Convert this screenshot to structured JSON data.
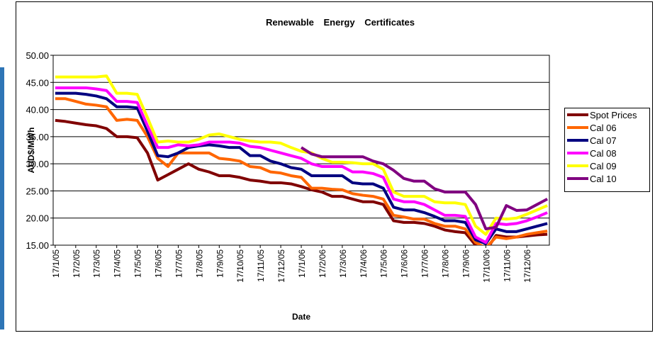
{
  "chart_data": {
    "type": "line",
    "title": "Renewable Energy Certificates",
    "x_label": "Date",
    "y_label": "AUD$/MWh",
    "x": [
      0,
      0.5,
      1,
      1.5,
      2,
      2.5,
      3,
      3.5,
      4,
      4.5,
      5,
      5.5,
      6,
      6.5,
      7,
      7.5,
      8,
      8.5,
      9,
      9.5,
      10,
      10.5,
      11,
      11.5,
      12,
      12.5,
      13,
      13.5,
      14,
      14.5,
      15,
      15.5,
      16,
      16.5,
      17,
      17.5,
      18,
      18.5,
      19,
      19.5,
      20,
      20.5,
      21,
      21.5,
      22,
      22.5,
      23,
      23.5,
      24
    ],
    "xlim": [
      -0.1,
      24.1
    ],
    "xticks": [
      {
        "value": 0,
        "label": "17/1/05"
      },
      {
        "value": 1,
        "label": "17/2/05"
      },
      {
        "value": 2,
        "label": "17/3/05"
      },
      {
        "value": 3,
        "label": "17/4/05"
      },
      {
        "value": 4,
        "label": "17/5/05"
      },
      {
        "value": 5,
        "label": "17/6/05"
      },
      {
        "value": 6,
        "label": "17/7/05"
      },
      {
        "value": 7,
        "label": "17/8/05"
      },
      {
        "value": 8,
        "label": "17/9/05"
      },
      {
        "value": 9,
        "label": "17/10/05"
      },
      {
        "value": 10,
        "label": "17/11/05"
      },
      {
        "value": 11,
        "label": "17/12/05"
      },
      {
        "value": 12,
        "label": "17/1/06"
      },
      {
        "value": 13,
        "label": "17/2/06"
      },
      {
        "value": 14,
        "label": "17/3/06"
      },
      {
        "value": 15,
        "label": "17/4/06"
      },
      {
        "value": 16,
        "label": "17/5/06"
      },
      {
        "value": 17,
        "label": "17/6/06"
      },
      {
        "value": 18,
        "label": "17/7/06"
      },
      {
        "value": 19,
        "label": "17/8/06"
      },
      {
        "value": 20,
        "label": "17/9/06"
      },
      {
        "value": 21,
        "label": "17/10/06"
      },
      {
        "value": 22,
        "label": "17/11/06"
      },
      {
        "value": 23,
        "label": "17/12/06"
      }
    ],
    "ylim": [
      15,
      50
    ],
    "yticks": [
      {
        "value": 15,
        "label": "15.00"
      },
      {
        "value": 20,
        "label": "20.00"
      },
      {
        "value": 25,
        "label": "25.00"
      },
      {
        "value": 30,
        "label": "30.00"
      },
      {
        "value": 35,
        "label": "35.00"
      },
      {
        "value": 40,
        "label": "40.00"
      },
      {
        "value": 45,
        "label": "45.00"
      },
      {
        "value": 50,
        "label": "50.00"
      }
    ],
    "grid": true,
    "legend": "right",
    "series": [
      {
        "name": "Spot Prices",
        "color": "#800000",
        "values": [
          38,
          37.8,
          37.5,
          37.2,
          37,
          36.5,
          35,
          35,
          34.8,
          32,
          27,
          28,
          29,
          30,
          29,
          28.5,
          27.8,
          27.8,
          27.5,
          27,
          26.8,
          26.5,
          26.5,
          26.3,
          25.8,
          25.2,
          24.8,
          24,
          24,
          23.5,
          23,
          23,
          22.5,
          19.5,
          19.2,
          19.2,
          19,
          18.5,
          17.8,
          17.5,
          17.3,
          15,
          14,
          16.8,
          16.5,
          16.5,
          16.7,
          16.9,
          17
        ]
      },
      {
        "name": "Cal 06",
        "color": "#ff6600",
        "values": [
          42,
          42,
          41.5,
          41,
          40.8,
          40.5,
          38,
          38.2,
          38,
          35,
          31,
          29.5,
          32,
          32,
          32,
          32,
          31,
          30.8,
          30.5,
          29.5,
          29.3,
          28.5,
          28.3,
          27.8,
          27.5,
          25.5,
          25.5,
          25.3,
          25.2,
          24.5,
          24.2,
          24,
          23.5,
          20.5,
          20.2,
          19.8,
          19.8,
          19,
          18.5,
          18.5,
          18,
          15.5,
          14.5,
          16.5,
          16.2,
          16.5,
          17,
          17.3,
          17.6
        ]
      },
      {
        "name": "Cal 07",
        "color": "#000080",
        "values": [
          43,
          43,
          43,
          42.8,
          42.5,
          42,
          40.5,
          40.5,
          40.3,
          36,
          31.5,
          31.3,
          32,
          33,
          33.3,
          33.5,
          33.3,
          33,
          33,
          31.5,
          31.5,
          30.5,
          30,
          29.3,
          29,
          27.8,
          27.8,
          27.8,
          27.8,
          26.5,
          26.3,
          26.3,
          25.5,
          22,
          21.5,
          21.5,
          21,
          20.3,
          19.5,
          19.5,
          19.2,
          16,
          15.3,
          18,
          17.5,
          17.5,
          18,
          18.5,
          19
        ]
      },
      {
        "name": "Cal 08",
        "color": "#ff00ff",
        "values": [
          44,
          44,
          44,
          44,
          43.8,
          43.5,
          41.5,
          41.5,
          41.3,
          37,
          33,
          33,
          33.5,
          33.3,
          33.5,
          34,
          34,
          34,
          33.8,
          33.2,
          33,
          32.5,
          32,
          31.5,
          31,
          30,
          29.5,
          29.5,
          29.5,
          28.5,
          28.5,
          28.2,
          27.5,
          23.5,
          23,
          23,
          22.5,
          21.5,
          20.5,
          20.5,
          20.3,
          16.5,
          15.5,
          19,
          18.8,
          19,
          19.5,
          20.2,
          21
        ]
      },
      {
        "name": "Cal 09",
        "color": "#ffff00",
        "values": [
          46,
          46,
          46,
          46,
          46,
          46.2,
          43,
          43,
          42.8,
          38.5,
          34,
          34.2,
          34,
          34,
          34.5,
          35.3,
          35.5,
          35,
          34.5,
          34.2,
          34,
          34,
          33.8,
          33,
          32.3,
          32,
          31,
          30.3,
          30.3,
          30.2,
          30,
          30,
          29,
          24.8,
          24,
          24,
          24,
          23,
          22.8,
          22.8,
          22.5,
          18.5,
          17,
          20,
          19.8,
          20,
          20.7,
          21.5,
          22.3
        ]
      },
      {
        "name": "Cal 10",
        "color": "#800080",
        "values": [
          null,
          null,
          null,
          null,
          null,
          null,
          null,
          null,
          null,
          null,
          null,
          null,
          null,
          null,
          null,
          null,
          null,
          null,
          null,
          null,
          null,
          null,
          null,
          null,
          33,
          31.8,
          31.3,
          31.3,
          31.3,
          31.3,
          31.3,
          30.5,
          30,
          28.8,
          27.3,
          26.8,
          26.8,
          25.4,
          24.8,
          24.8,
          24.8,
          22.5,
          18,
          18.3,
          22.3,
          21.4,
          21.5,
          22.5,
          23.5
        ]
      }
    ]
  }
}
